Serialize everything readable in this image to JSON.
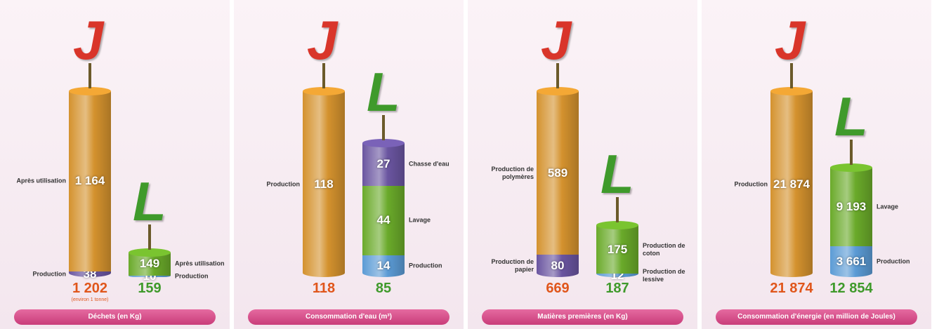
{
  "chart_data": [
    {
      "type": "stacked-cylinder",
      "title": "Déchets (en Kg)",
      "columns": [
        {
          "icon": "J",
          "color": "#d9352a",
          "total": 1202,
          "total_label": "1 202",
          "total_note": "(environ 1 tonne)",
          "segments": [
            {
              "name": "Production",
              "value": 38,
              "color": "#6a55a0"
            },
            {
              "name": "Après utilisation",
              "value": 1164,
              "value_label": "1 164",
              "color": "#d4922e"
            }
          ]
        },
        {
          "icon": "L",
          "color": "#3f9a2b",
          "total": 159,
          "segments": [
            {
              "name": "Production",
              "value": 10,
              "color": "#5b9bd5"
            },
            {
              "name": "Après utilisation",
              "value": 149,
              "color": "#6aaa2a"
            }
          ]
        }
      ]
    },
    {
      "type": "stacked-cylinder",
      "title": "Consommation d'eau (m³)",
      "columns": [
        {
          "icon": "J",
          "color": "#d9352a",
          "total": 118,
          "segments": [
            {
              "name": "Production",
              "value": 118,
              "color": "#d4922e"
            }
          ]
        },
        {
          "icon": "L",
          "color": "#3f9a2b",
          "total": 85,
          "segments": [
            {
              "name": "Production",
              "value": 14,
              "color": "#5b9bd5"
            },
            {
              "name": "Lavage",
              "value": 44,
              "color": "#6aaa2a"
            },
            {
              "name": "Chasse d'eau",
              "value": 27,
              "color": "#6a55a0"
            }
          ]
        }
      ]
    },
    {
      "type": "stacked-cylinder",
      "title": "Matières premières (en Kg)",
      "columns": [
        {
          "icon": "J",
          "color": "#d9352a",
          "total": 669,
          "segments": [
            {
              "name": "Production de papier",
              "value": 80,
              "color": "#6a55a0"
            },
            {
              "name": "Production de polymères",
              "value": 589,
              "color": "#d4922e"
            }
          ]
        },
        {
          "icon": "L",
          "color": "#3f9a2b",
          "total": 187,
          "segments": [
            {
              "name": "Production de lessive",
              "value": 12,
              "color": "#5b9bd5"
            },
            {
              "name": "Production de coton",
              "value": 175,
              "color": "#6aaa2a"
            }
          ]
        }
      ]
    },
    {
      "type": "stacked-cylinder",
      "title": "Consommation d'énergie (en million de Joules)",
      "columns": [
        {
          "icon": "J",
          "color": "#d9352a",
          "total": 21874,
          "total_label": "21 874",
          "segments": [
            {
              "name": "Production",
              "value": 21874,
              "value_label": "21 874",
              "color": "#d4922e"
            }
          ]
        },
        {
          "icon": "L",
          "color": "#3f9a2b",
          "total": 12854,
          "total_label": "12 854",
          "segments": [
            {
              "name": "Production",
              "value": 3661,
              "value_label": "3 661",
              "color": "#5b9bd5"
            },
            {
              "name": "Lavage",
              "value": 9193,
              "value_label": "9 193",
              "color": "#6aaa2a"
            }
          ]
        }
      ]
    }
  ]
}
